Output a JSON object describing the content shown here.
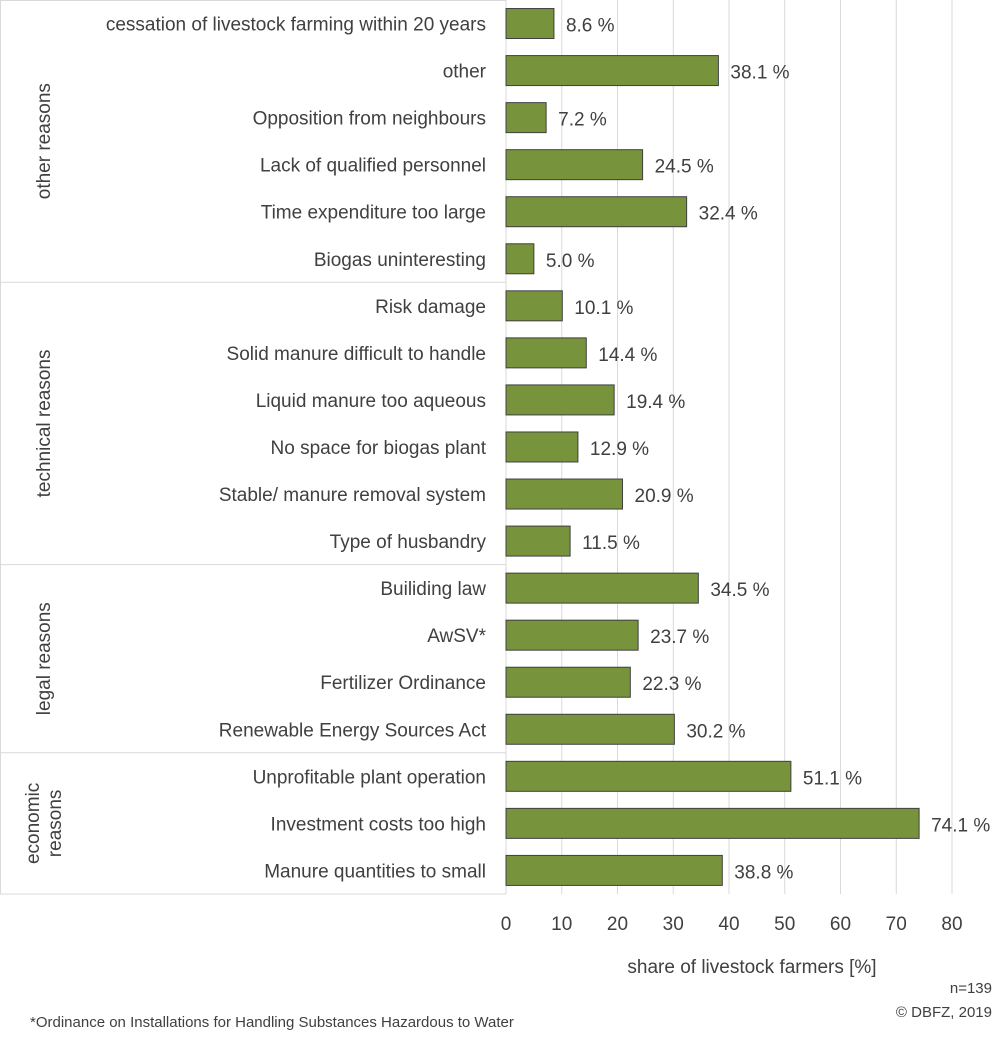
{
  "chart_data": {
    "type": "bar",
    "orientation": "horizontal",
    "xlabel": "share of livestock farmers [%]",
    "xlim": [
      0,
      80
    ],
    "xticks": [
      0,
      10,
      20,
      30,
      40,
      50,
      60,
      70,
      80
    ],
    "value_suffix": " %",
    "vertical_grid": true,
    "bar_color": "#77933C",
    "bar_edge_color": "#404040",
    "groups": [
      {
        "name_lines": [
          "other reasons"
        ],
        "items": [
          {
            "label": "cessation of livestock farming within 20 years",
            "value": 8.6,
            "value_label": "8.6 %"
          },
          {
            "label": "other",
            "value": 38.1,
            "value_label": "38.1 %"
          },
          {
            "label": "Opposition from neighbours",
            "value": 7.2,
            "value_label": "7.2 %"
          },
          {
            "label": "Lack of qualified personnel",
            "value": 24.5,
            "value_label": "24.5 %"
          },
          {
            "label": "Time expenditure too large",
            "value": 32.4,
            "value_label": "32.4 %"
          },
          {
            "label": "Biogas uninteresting",
            "value": 5.0,
            "value_label": "5.0 %"
          }
        ]
      },
      {
        "name_lines": [
          "technical reasons"
        ],
        "items": [
          {
            "label": "Risk damage",
            "value": 10.1,
            "value_label": "10.1 %"
          },
          {
            "label": "Solid manure difficult to handle",
            "value": 14.4,
            "value_label": "14.4 %"
          },
          {
            "label": "Liquid manure too aqueous",
            "value": 19.4,
            "value_label": "19.4 %"
          },
          {
            "label": "No space for biogas plant",
            "value": 12.9,
            "value_label": "12.9 %"
          },
          {
            "label": "Stable/ manure removal system",
            "value": 20.9,
            "value_label": "20.9 %"
          },
          {
            "label": "Type of husbandry",
            "value": 11.5,
            "value_label": "11.5 %"
          }
        ]
      },
      {
        "name_lines": [
          "legal reasons"
        ],
        "items": [
          {
            "label": "Builiding law",
            "value": 34.5,
            "value_label": "34.5 %"
          },
          {
            "label": "AwSV*",
            "value": 23.7,
            "value_label": "23.7 %"
          },
          {
            "label": "Fertilizer Ordinance",
            "value": 22.3,
            "value_label": "22.3 %"
          },
          {
            "label": "Renewable Energy Sources Act",
            "value": 30.2,
            "value_label": "30.2 %"
          }
        ]
      },
      {
        "name_lines": [
          "economic",
          "reasons"
        ],
        "items": [
          {
            "label": "Unprofitable plant operation",
            "value": 51.1,
            "value_label": "51.1 %"
          },
          {
            "label": "Investment costs too high",
            "value": 74.1,
            "value_label": "74.1 %"
          },
          {
            "label": "Manure quantities to small",
            "value": 38.8,
            "value_label": "38.8 %"
          }
        ]
      }
    ]
  },
  "notes": {
    "sample_size": "n=139",
    "copyright": "© DBFZ, 2019",
    "footnote": "*Ordinance on Installations for Handling Substances Hazardous to Water"
  }
}
